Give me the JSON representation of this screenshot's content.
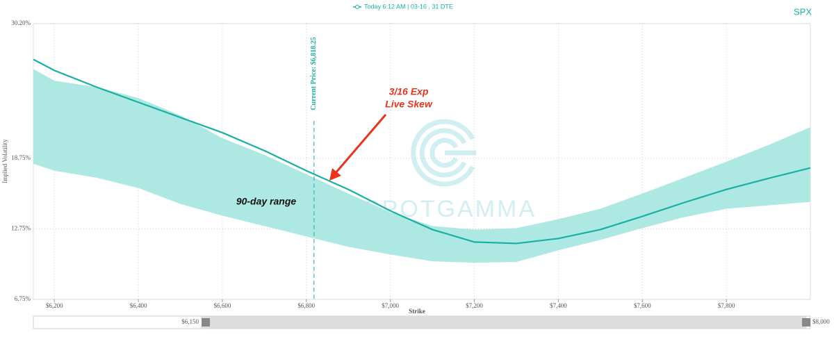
{
  "chart_data": {
    "type": "line",
    "symbol": "SPX",
    "x_label": "Strike",
    "y_label": "Implied Volatility",
    "x": [
      6150,
      6200,
      6300,
      6400,
      6500,
      6600,
      6700,
      6800,
      6900,
      7000,
      7100,
      7200,
      7300,
      7400,
      7500,
      7600,
      7700,
      7800,
      7900,
      8000
    ],
    "series": [
      {
        "name": "Today 6:12 AM | 03-16 , 31 DTE",
        "color": "#1aafa3",
        "values": [
          27.16,
          26.22,
          24.81,
          23.51,
          22.22,
          20.93,
          19.4,
          17.69,
          16.1,
          14.28,
          12.69,
          11.63,
          11.51,
          11.93,
          12.69,
          13.81,
          14.99,
          16.1,
          17.04,
          17.93
        ]
      }
    ],
    "range": {
      "label": "90-day range",
      "color": "#aee8e2",
      "upper": [
        26.34,
        25.34,
        24.81,
        23.87,
        22.4,
        20.46,
        19.04,
        17.4,
        15.75,
        14.16,
        12.99,
        12.69,
        12.81,
        13.57,
        14.46,
        15.75,
        17.1,
        18.46,
        19.87,
        21.4
      ],
      "lower": [
        18.28,
        17.69,
        17.1,
        16.22,
        14.87,
        13.87,
        12.99,
        12.1,
        11.22,
        10.57,
        9.99,
        9.87,
        9.93,
        10.93,
        11.81,
        12.81,
        13.75,
        14.46,
        14.75,
        15.04
      ]
    },
    "current_price": {
      "value": 6818.25,
      "label": "Current Price: $6,818.25"
    },
    "annotation": {
      "lines": [
        "3/16 Exp",
        "Live Skew"
      ],
      "color": "#e8341c"
    },
    "watermark": "SPOTGAMMA",
    "navigator_labels": [
      "$6,150",
      "$8,000"
    ],
    "xlim": [
      6150,
      8000
    ],
    "ylim": [
      6.75,
      30.2
    ],
    "xticks": [
      {
        "value": 6200,
        "label": "$6,200"
      },
      {
        "value": 6400,
        "label": "$6,400"
      },
      {
        "value": 6600,
        "label": "$6,600"
      },
      {
        "value": 6800,
        "label": "$6,800"
      },
      {
        "value": 7000,
        "label": "$7,000"
      },
      {
        "value": 7200,
        "label": "$7,200"
      },
      {
        "value": 7400,
        "label": "$7,400"
      },
      {
        "value": 7600,
        "label": "$7,600"
      },
      {
        "value": 7800,
        "label": "$7,800"
      }
    ],
    "yticks": [
      {
        "value": 6.75,
        "label": "6.75%"
      },
      {
        "value": 12.75,
        "label": "12.75%"
      },
      {
        "value": 18.75,
        "label": "18.75%"
      },
      {
        "value": 30.2,
        "label": "30.20%"
      }
    ],
    "grid": true
  }
}
